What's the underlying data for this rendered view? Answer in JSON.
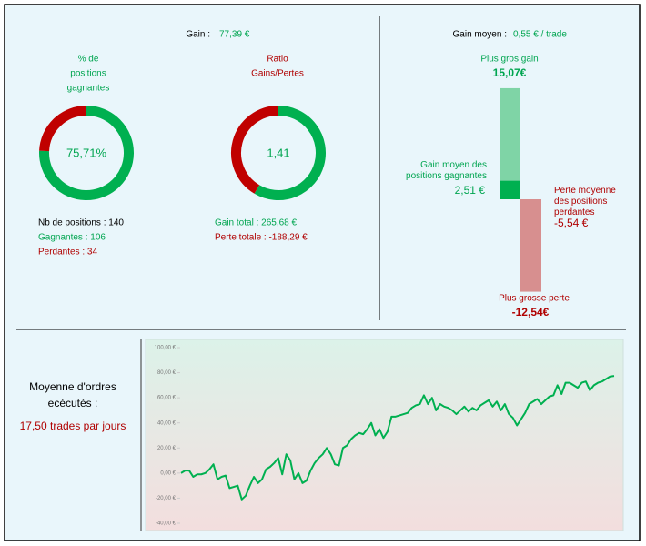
{
  "header": {
    "gain_label": "Gain :",
    "gain_value": "77,39 €",
    "avg_gain_label": "Gain moyen :",
    "avg_gain_value": "0,55 € / trade"
  },
  "orders": {
    "label": "Moyenne d'ordres ecécutés :",
    "value": "17,50 trades par jours"
  },
  "chart_data": [
    {
      "type": "donut",
      "title_lines": [
        "% de",
        "positions",
        "gagnantes"
      ],
      "title_color": "#00a550",
      "center_value": 75.71,
      "center_label": "75,71%",
      "colors": [
        "#00b050",
        "#c00000"
      ],
      "mode": "percent",
      "stats": [
        "Nb de positions : 140",
        "Gagnantes : 106",
        "Perdantes : 34"
      ],
      "stats_colors": [
        "#000000",
        "#00a550",
        "#b00000"
      ]
    },
    {
      "type": "donut",
      "title_lines": [
        "Ratio",
        "Gains/Pertes"
      ],
      "title_color": "#b00000",
      "center_value": 1.41,
      "center_label": "1,41",
      "colors": [
        "#00b050",
        "#c00000"
      ],
      "mode": "ratio",
      "stats": [
        "Gain total : 265,68 €",
        "Perte totale : -188,29 €"
      ],
      "stats_colors": [
        "#00a550",
        "#b00000"
      ]
    },
    {
      "type": "bar",
      "categories": [
        "Plus gros gain",
        "Gain moyen des positions gagnantes",
        "Perte moyenne des positions perdantes",
        "Plus grosse perte"
      ],
      "values": [
        15.07,
        2.51,
        -5.54,
        -12.54
      ],
      "value_labels": [
        "15,07€",
        "2,51 €",
        "-5,54 €",
        "-12,54€"
      ],
      "colors": [
        "#7fd4a6",
        "#00b050",
        "#c00000",
        "#d78f8f"
      ]
    },
    {
      "type": "line",
      "color": "#00b050",
      "ylim": [
        -40,
        100
      ],
      "yticks": [
        {
          "value": -40,
          "label": "-40,00 €"
        },
        {
          "value": -20,
          "label": "-20,00 €"
        },
        {
          "value": 0,
          "label": "0,00 €"
        },
        {
          "value": 20,
          "label": "20,00 €"
        },
        {
          "value": 40,
          "label": "40,00 €"
        },
        {
          "value": 60,
          "label": "60,00 €"
        },
        {
          "value": 80,
          "label": "80,00 €"
        },
        {
          "value": 100,
          "label": "100,00 €"
        }
      ],
      "values": [
        0,
        2,
        2,
        -3,
        -1,
        -1,
        0,
        3,
        7,
        -5,
        -3,
        -2,
        -12,
        -11,
        -10,
        -21,
        -18,
        -10,
        -3,
        -8,
        -5,
        3,
        5,
        8,
        12,
        -1,
        15,
        10,
        -5,
        0,
        -8,
        -6,
        2,
        8,
        12,
        15,
        20,
        15,
        7,
        6,
        20,
        22,
        27,
        30,
        32,
        31,
        35,
        40,
        30,
        35,
        28,
        33,
        45,
        45,
        46,
        47,
        48,
        52,
        54,
        55,
        62,
        55,
        60,
        50,
        55,
        53,
        52,
        50,
        47,
        50,
        53,
        49,
        52,
        50,
        54,
        56,
        58,
        53,
        57,
        50,
        55,
        47,
        44,
        38,
        43,
        48,
        55,
        57,
        59,
        55,
        58,
        61,
        62,
        70,
        63,
        72,
        72,
        70,
        68,
        72,
        73,
        66,
        70,
        72,
        73,
        75,
        77,
        77.39
      ]
    }
  ]
}
